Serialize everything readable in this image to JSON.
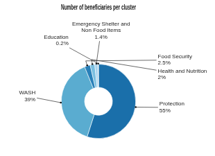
{
  "chart_data": {
    "type": "doughnut",
    "title": "Number of beneficiaries per cluster",
    "categories": [
      "Protection",
      "WASH",
      "Food Security",
      "Health and Nutrition",
      "Emergency Shelter and\nNon Food Items",
      "Education"
    ],
    "values": [
      55,
      39,
      2.5,
      2,
      1.4,
      0.2
    ],
    "value_labels": [
      "55%",
      "39%",
      "2.5%",
      "2%",
      "1.4%",
      "0.2%"
    ],
    "colors": [
      "#1a6faa",
      "#5aacd0",
      "#2980b9",
      "#7bbfe0",
      "#aad4ee",
      "#cce5f5"
    ],
    "data_labels": true
  }
}
